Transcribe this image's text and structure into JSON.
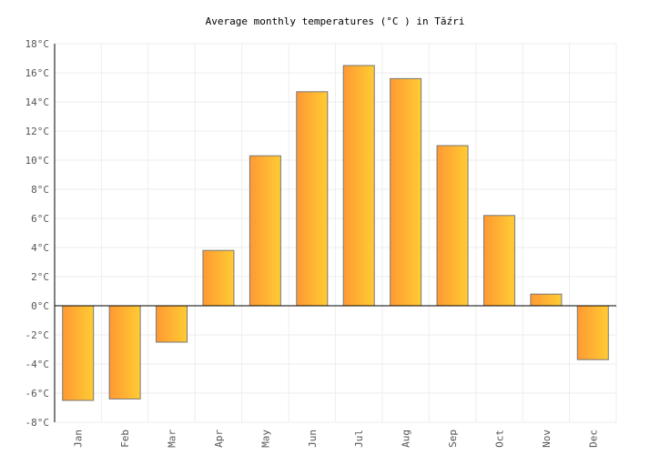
{
  "chart_data": {
    "type": "bar",
    "title": "Average monthly temperatures (°C ) in Tăźri",
    "categories": [
      "Jan",
      "Feb",
      "Mar",
      "Apr",
      "May",
      "Jun",
      "Jul",
      "Aug",
      "Sep",
      "Oct",
      "Nov",
      "Dec"
    ],
    "values": [
      -6.5,
      -6.4,
      -2.5,
      3.8,
      10.3,
      14.7,
      16.5,
      15.6,
      11.0,
      6.2,
      0.8,
      -3.7
    ],
    "ylim": [
      -8,
      18
    ],
    "yticks": [
      -8,
      -6,
      -4,
      -2,
      0,
      2,
      4,
      6,
      8,
      10,
      12,
      14,
      16,
      18
    ],
    "ytick_suffix": "°C",
    "grid": true,
    "colors": {
      "bar_start": "#ff9933",
      "bar_end": "#ffcc33",
      "bar_border": "#777777",
      "grid": "#eeeeee"
    }
  }
}
